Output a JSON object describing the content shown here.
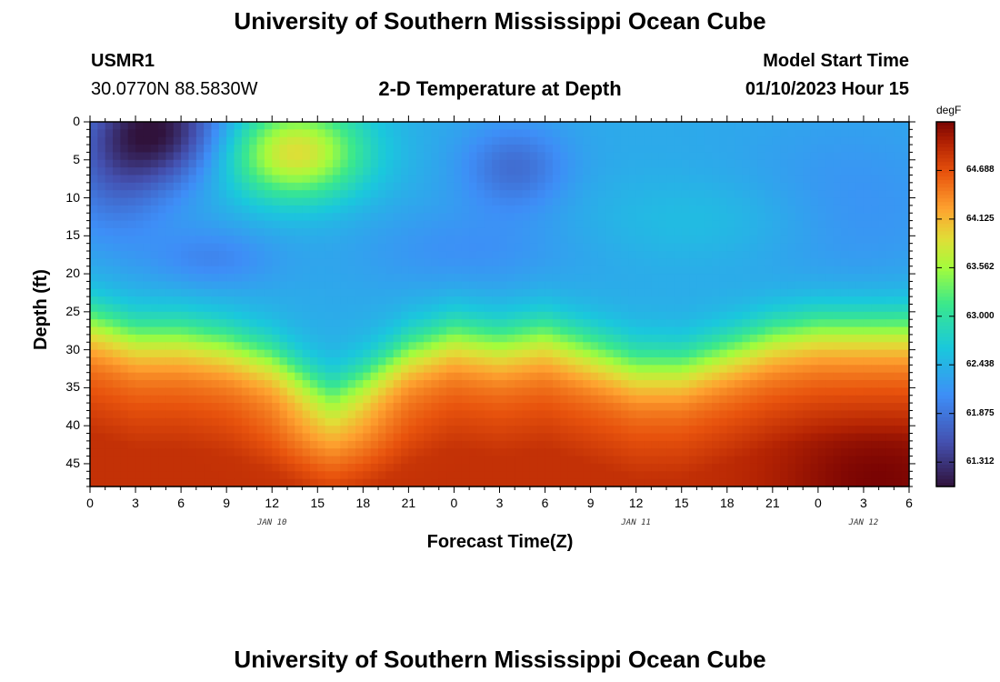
{
  "page": {
    "title": "University of Southern Mississippi Ocean Cube",
    "footer_title": "University of Southern Mississippi Ocean Cube"
  },
  "header": {
    "station": "USMR1",
    "coords": "30.0770N  88.5830W",
    "plot_title": "2-D Temperature at Depth",
    "model_label": "Model Start Time",
    "model_time": "01/10/2023 Hour 15"
  },
  "chart_data": {
    "type": "heatmap",
    "title": "2-D Temperature at Depth",
    "xlabel": "Forecast Time(Z)",
    "ylabel": "Depth (ft)",
    "x_range_hours": [
      0,
      54
    ],
    "x_tick_labels": [
      "0",
      "3",
      "6",
      "9",
      "12",
      "15",
      "18",
      "21",
      "0",
      "3",
      "6",
      "9",
      "12",
      "15",
      "18",
      "21",
      "0",
      "3",
      "6"
    ],
    "date_labels": [
      "JAN 10",
      "JAN 11",
      "JAN 12"
    ],
    "y_range_ft": [
      0,
      48
    ],
    "y_tick_labels": [
      "0",
      "5",
      "10",
      "15",
      "20",
      "25",
      "30",
      "35",
      "40",
      "45"
    ],
    "colorbar": {
      "unit": "degF",
      "tick_labels": [
        "64.688",
        "64.125",
        "63.562",
        "63.000",
        "62.438",
        "61.875",
        "61.312"
      ],
      "range": [
        61.03,
        65.25
      ]
    },
    "thermocline_depth_ft": [
      [
        0,
        26
      ],
      [
        3,
        28
      ],
      [
        6,
        28
      ],
      [
        9,
        29
      ],
      [
        12,
        31
      ],
      [
        15,
        35
      ],
      [
        16,
        36
      ],
      [
        18,
        34
      ],
      [
        21,
        30
      ],
      [
        24,
        28
      ],
      [
        27,
        29
      ],
      [
        30,
        28
      ],
      [
        33,
        30
      ],
      [
        36,
        32
      ],
      [
        39,
        32
      ],
      [
        42,
        30
      ],
      [
        45,
        28
      ],
      [
        48,
        27
      ],
      [
        51,
        27
      ],
      [
        54,
        27
      ]
    ],
    "warm_cores": [
      {
        "hour": 13.5,
        "depth_ft": 4,
        "value": 63.9
      },
      {
        "hour": 52,
        "depth_ft": 47,
        "value": 65.2
      }
    ],
    "cold_cores": [
      {
        "hour": 4.5,
        "depth_ft": 1,
        "value": 61.1
      },
      {
        "hour": 28,
        "depth_ft": 6,
        "value": 61.9
      }
    ]
  }
}
